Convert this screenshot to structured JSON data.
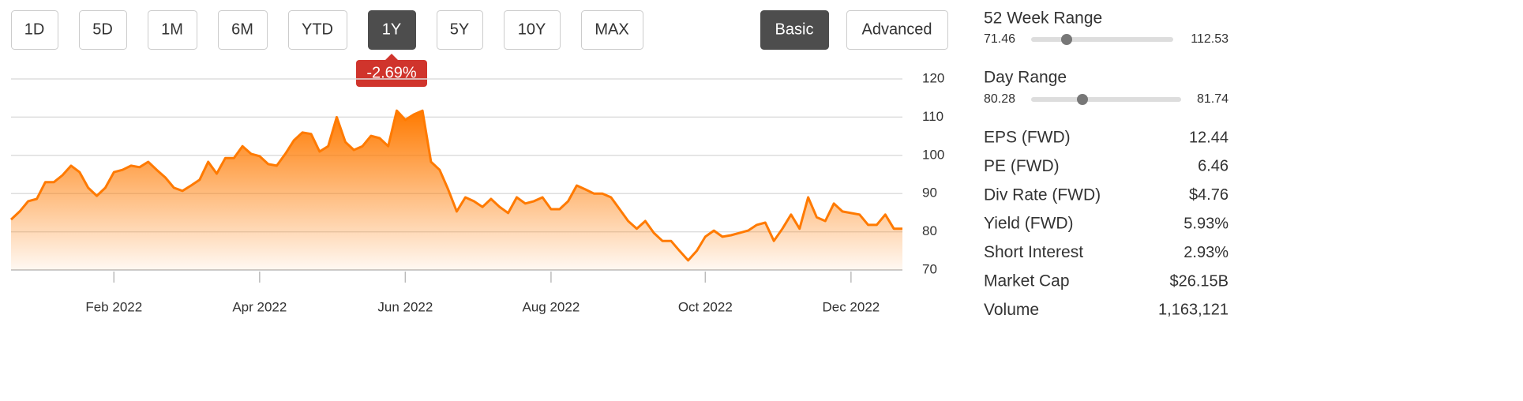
{
  "controls": {
    "ranges": [
      "1D",
      "5D",
      "1M",
      "6M",
      "YTD",
      "1Y",
      "5Y",
      "10Y",
      "MAX"
    ],
    "modes": [
      "Basic",
      "Advanced"
    ],
    "change": "-2.69%"
  },
  "chart_data": {
    "type": "area",
    "categories": [
      null,
      null,
      null,
      null,
      null,
      null,
      null,
      null,
      null,
      null,
      null,
      null,
      "Feb 2022",
      null,
      null,
      null,
      null,
      null,
      null,
      null,
      null,
      null,
      null,
      null,
      null,
      null,
      null,
      null,
      null,
      "Apr 2022",
      null,
      null,
      null,
      null,
      null,
      null,
      null,
      null,
      null,
      null,
      null,
      null,
      null,
      null,
      null,
      null,
      "Jun 2022",
      null,
      null,
      null,
      null,
      null,
      null,
      null,
      null,
      null,
      null,
      null,
      null,
      null,
      null,
      null,
      null,
      "Aug 2022",
      null,
      null,
      null,
      null,
      null,
      null,
      null,
      null,
      null,
      null,
      null,
      null,
      null,
      null,
      null,
      null,
      null,
      "Oct 2022",
      null,
      null,
      null,
      null,
      null,
      null,
      null,
      null,
      null,
      null,
      null,
      null,
      null,
      null,
      null,
      null,
      "Dec 2022",
      null,
      null,
      null,
      null,
      null,
      null
    ],
    "series": [
      {
        "color": "#ff7a00",
        "values": [
          83.2,
          85.3,
          88,
          88.6,
          93,
          93,
          94.8,
          97.3,
          95.6,
          91.5,
          89.4,
          91.5,
          95.6,
          96.2,
          97.3,
          96.9,
          98.3,
          96.2,
          94.2,
          91.5,
          90.7,
          92.1,
          93.6,
          98.3,
          95.2,
          99.3,
          99.3,
          102.4,
          100.4,
          99.8,
          97.7,
          97.3,
          100.4,
          103.9,
          106,
          105.6,
          101,
          102.4,
          110,
          103.5,
          101.4,
          102.4,
          105.1,
          104.5,
          102.4,
          111.7,
          109.3,
          110.7,
          111.7,
          98.3,
          96.2,
          91.1,
          85.3,
          89,
          88,
          86.5,
          88.6,
          86.5,
          84.9,
          89,
          87.4,
          88,
          89,
          85.9,
          85.9,
          88,
          92.1,
          91.1,
          90,
          90,
          89,
          85.9,
          82.8,
          80.8,
          82.8,
          79.7,
          77.6,
          77.6,
          75,
          72.5,
          75,
          78.7,
          80.3,
          78.7,
          79.1,
          79.7,
          80.3,
          81.8,
          82.4,
          77.6,
          80.8,
          84.5,
          80.8,
          89,
          83.8,
          82.8,
          87.4,
          85.3,
          84.9,
          84.5,
          81.8,
          81.8,
          84.5,
          80.8,
          80.8
        ]
      }
    ],
    "ylim": [
      70,
      120
    ],
    "yticks": [
      70,
      80,
      90,
      100,
      110,
      120
    ],
    "grid": true
  },
  "stats": {
    "week52": {
      "label": "52 Week Range",
      "low": "71.46",
      "high": "112.53"
    },
    "day": {
      "label": "Day Range",
      "low": "80.28",
      "high": "81.74"
    },
    "rows": [
      [
        "EPS (FWD)",
        "12.44"
      ],
      [
        "PE (FWD)",
        "6.46"
      ],
      [
        "Div Rate (FWD)",
        "$4.76"
      ],
      [
        "Yield (FWD)",
        "5.93%"
      ],
      [
        "Short Interest",
        "2.93%"
      ],
      [
        "Market Cap",
        "$26.15B"
      ],
      [
        "Volume",
        "1,163,121"
      ]
    ]
  }
}
